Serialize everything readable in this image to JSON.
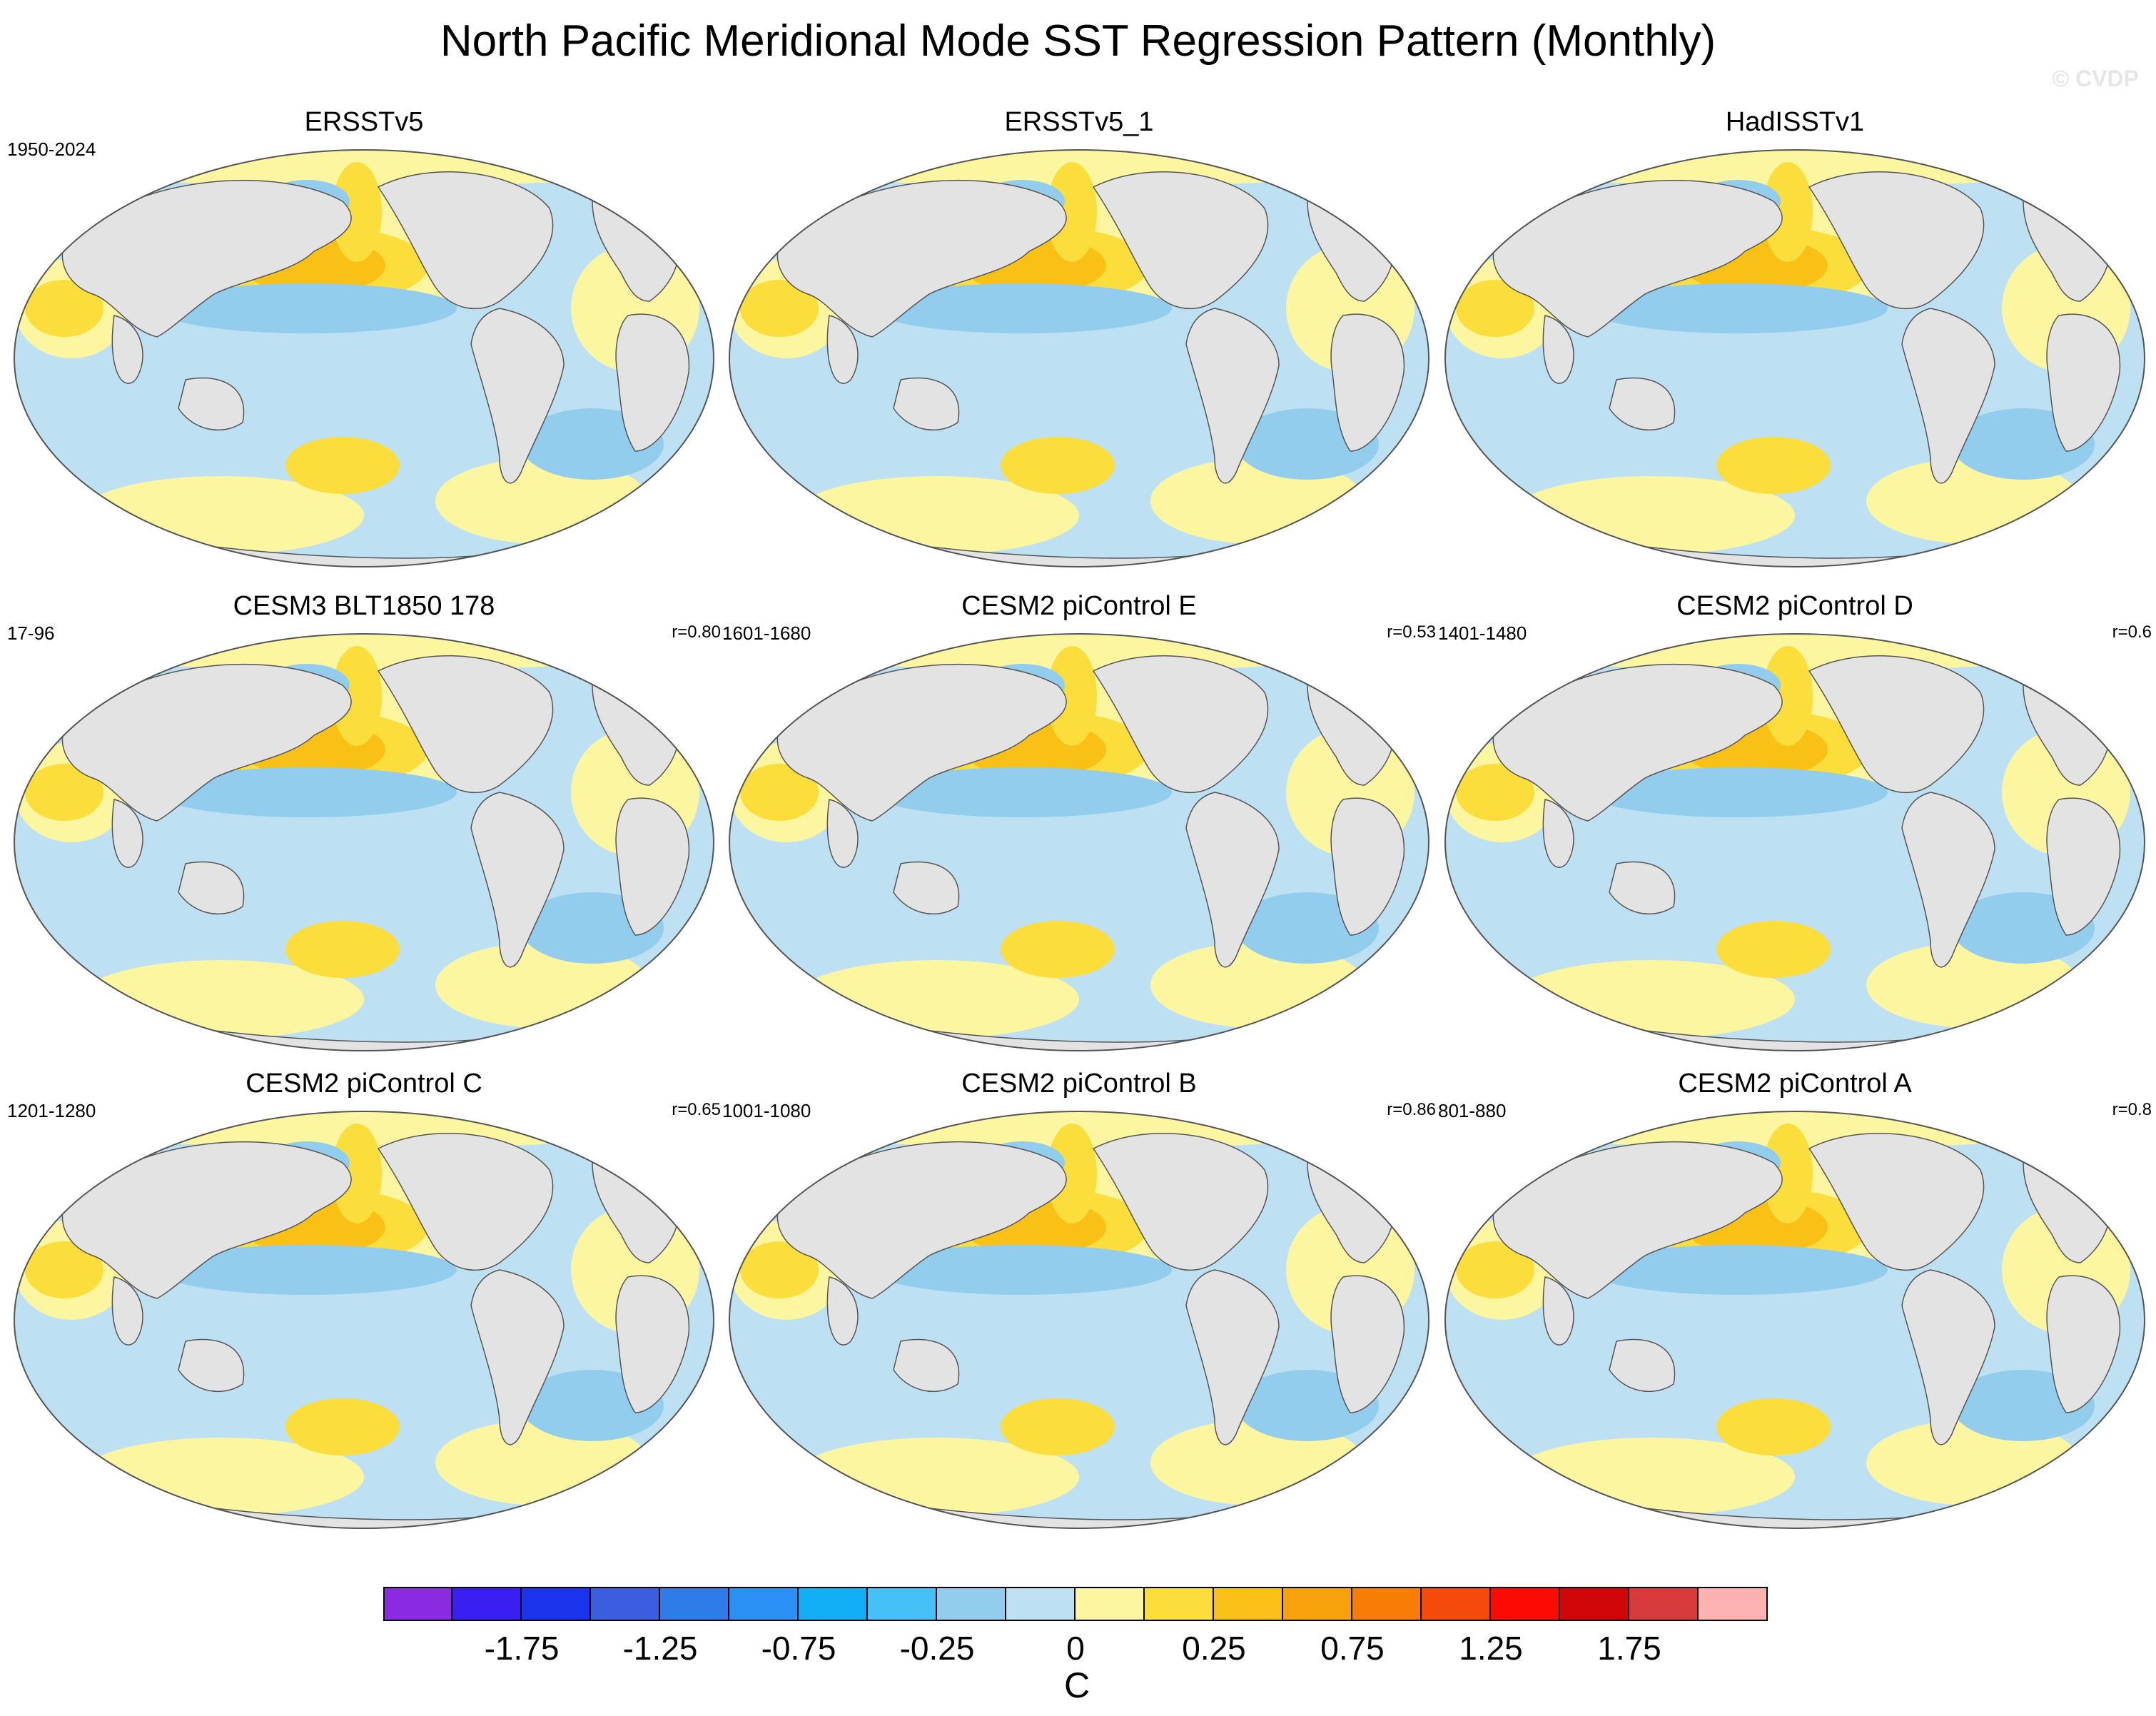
{
  "title": "North Pacific Meridional Mode SST Regression Pattern (Monthly)",
  "copyright": "© CVDP",
  "panels": [
    {
      "name": "ERSSTv5",
      "period": "1950-2024",
      "corr": ""
    },
    {
      "name": "ERSSTv5_1",
      "period": "",
      "corr": ""
    },
    {
      "name": "HadISSTv1",
      "period": "",
      "corr": ""
    },
    {
      "name": "CESM3 BLT1850 178",
      "period": "17-96",
      "corr": "r=0.80"
    },
    {
      "name": "CESM2 piControl E",
      "period": "1601-1680",
      "corr": "r=0.53"
    },
    {
      "name": "CESM2 piControl D",
      "period": "1401-1480",
      "corr": "r=0.6"
    },
    {
      "name": "CESM2 piControl C",
      "period": "1201-1280",
      "corr": "r=0.65"
    },
    {
      "name": "CESM2 piControl B",
      "period": "1001-1080",
      "corr": "r=0.86"
    },
    {
      "name": "CESM2 piControl A",
      "period": "801-880",
      "corr": "r=0.8"
    }
  ],
  "colorbar": {
    "colors": [
      "#8a2be2",
      "#3a1ff2",
      "#1a34ee",
      "#3a5edf",
      "#2e7bea",
      "#2b90f5",
      "#12aef5",
      "#45c1f7",
      "#92cdee",
      "#bde1f3",
      "#fdf6a0",
      "#fbdd3c",
      "#f9c016",
      "#f7a20a",
      "#f77d06",
      "#f54a0a",
      "#fe0a04",
      "#d10608",
      "#d83a3c",
      "#fdb2b2"
    ],
    "labels": [
      "-1.75",
      "-1.25",
      "-0.75",
      "-0.25",
      "0",
      "0.25",
      "0.75",
      "1.25",
      "1.75"
    ],
    "units": "C"
  },
  "map_colors": {
    "land": "#e3e3e3",
    "ocean_background": "#bde1f3",
    "weak_positive": "#fdf6a0",
    "moderate_positive": "#fbdd3c",
    "strong_positive": "#f9c016",
    "very_strong_positive": "#f7a20a",
    "moderate_negative": "#92cdee",
    "strong_negative": "#45c1f7",
    "outline": "#555555"
  }
}
